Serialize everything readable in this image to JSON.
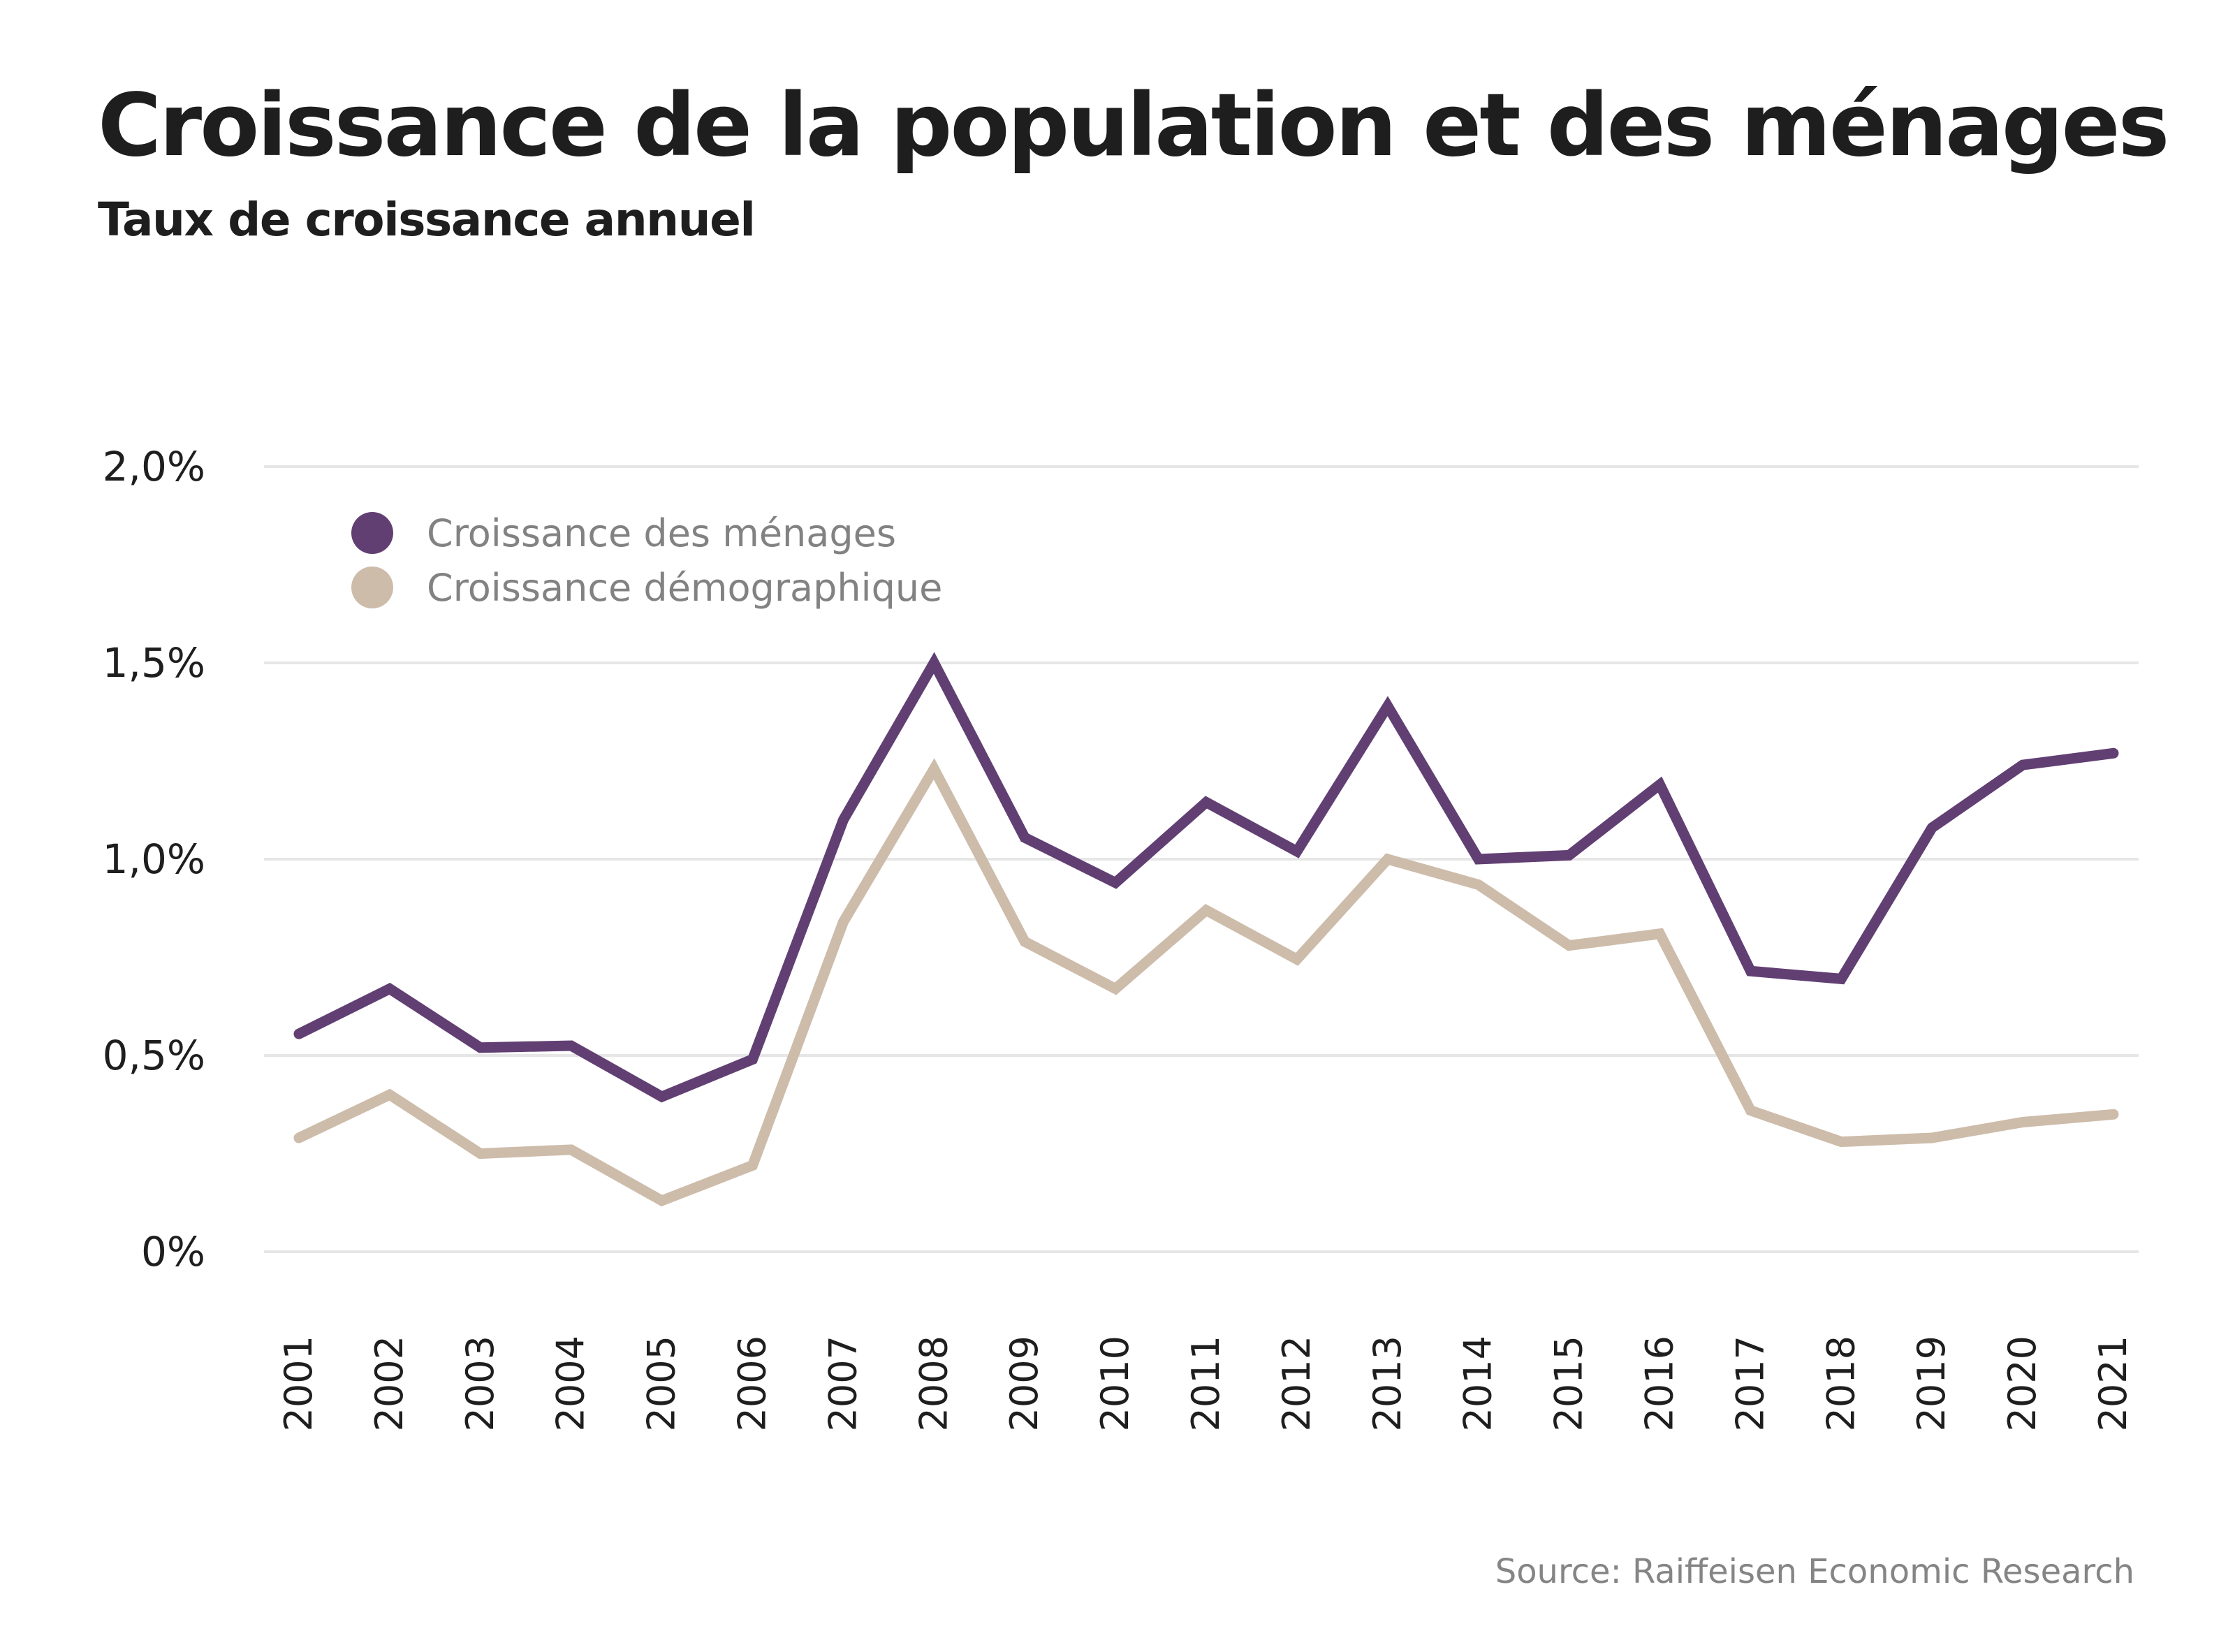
{
  "title": "Croissance de la population et des ménages",
  "subtitle": "Taux de croissance annuel",
  "source": "Source: Raiffeisen Economic Research",
  "colors": {
    "households": "#613f73",
    "population": "#cdbcaa",
    "grid": "#e6e6e6",
    "text": "#1e1e1e",
    "muted": "#828282"
  },
  "chart_data": {
    "type": "line",
    "title": "Croissance de la population et des ménages",
    "subtitle": "Taux de croissance annuel",
    "xlabel": "",
    "ylabel": "",
    "ylim": [
      0,
      2.0
    ],
    "yunit": "%",
    "yticks": [
      0,
      0.5,
      1.0,
      1.5,
      2.0
    ],
    "ytick_labels": [
      "0%",
      "0,5%",
      "1,0%",
      "1,5%",
      "2,0%"
    ],
    "grid": true,
    "legend_position": "top-left",
    "x": [
      "2001",
      "2002",
      "2003",
      "2004",
      "2005",
      "2006",
      "2007",
      "2008",
      "2009",
      "2010",
      "2011",
      "2012",
      "2013",
      "2014",
      "2015",
      "2016",
      "2017",
      "2018",
      "2019",
      "2020",
      "2021"
    ],
    "series": [
      {
        "name": "Croissance des ménages",
        "color": "#613f73",
        "values": [
          0.555,
          0.67,
          0.52,
          0.525,
          0.395,
          0.49,
          1.1,
          1.5,
          1.055,
          0.94,
          1.145,
          1.02,
          1.39,
          1.0,
          1.01,
          1.19,
          0.715,
          0.695,
          1.08,
          1.24,
          1.27
        ]
      },
      {
        "name": "Croissance démographique",
        "color": "#cdbcaa",
        "values": [
          0.29,
          0.4,
          0.25,
          0.26,
          0.13,
          0.22,
          0.84,
          1.23,
          0.79,
          0.67,
          0.87,
          0.745,
          1.0,
          0.935,
          0.78,
          0.81,
          0.36,
          0.28,
          0.29,
          0.33,
          0.35
        ]
      }
    ],
    "source": "Source: Raiffeisen Economic Research"
  }
}
